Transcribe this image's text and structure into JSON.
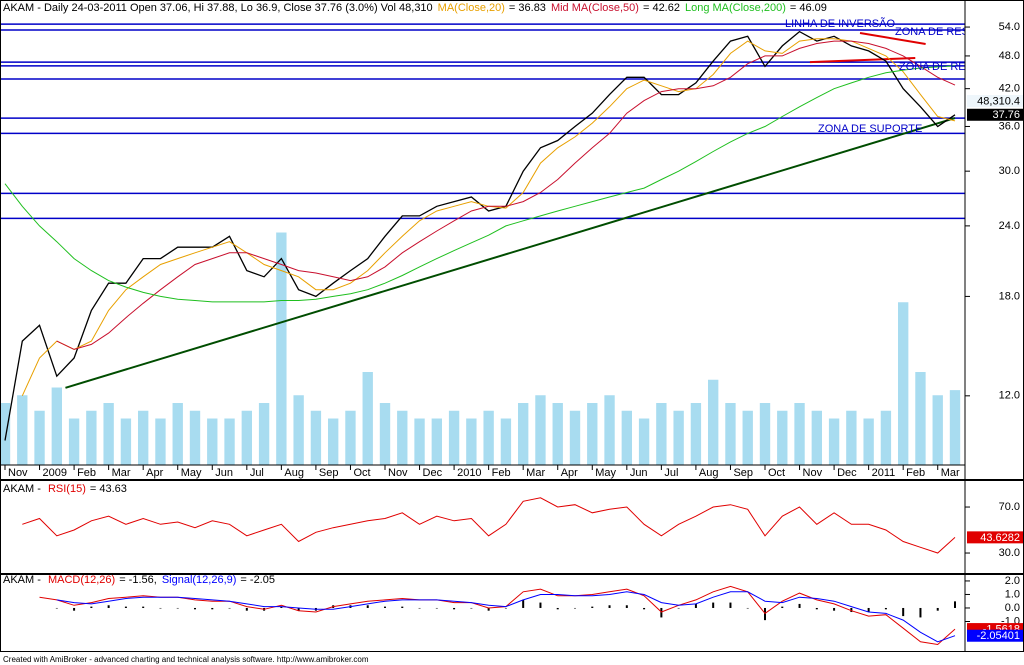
{
  "chart_data": [
    {
      "type": "line",
      "title": "AKAM - Daily 24-03-2011 Open 37.06, Hi 37.88, Lo 36.9, Close 37.76 (3.0%) Vol 48,310",
      "categories": [
        "Nov",
        null,
        "2009",
        null,
        "Feb",
        null,
        "Mar",
        null,
        "Apr",
        null,
        "May",
        null,
        "Jun",
        null,
        "Jul",
        null,
        "Aug",
        null,
        "Sep",
        null,
        "Oct",
        null,
        "Nov",
        null,
        "Dec",
        null,
        "2010",
        null,
        "Feb",
        null,
        "Mar",
        null,
        "Apr",
        null,
        "May",
        null,
        "Jun",
        null,
        "Jul",
        null,
        "Aug",
        null,
        "Sep",
        null,
        "Oct",
        null,
        "Nov",
        null,
        "Dec",
        null,
        "2011",
        null,
        "Feb",
        null,
        "Mar",
        null
      ],
      "series": [
        {
          "color": "#000000",
          "values": [
            10,
            15,
            16,
            13,
            14,
            17,
            19,
            19,
            21,
            21,
            22,
            22,
            22,
            23,
            20,
            19.5,
            21,
            18.5,
            18,
            19,
            20,
            21,
            23,
            25,
            25,
            26,
            26.5,
            27,
            25.5,
            26,
            30,
            33,
            34,
            36,
            38,
            41,
            44,
            44,
            41,
            41,
            43,
            47,
            51,
            52,
            46,
            50,
            53,
            51,
            52,
            50,
            49,
            47,
            42,
            39,
            36,
            37.76
          ]
        },
        {
          "name": "MA(Close,20)",
          "legend_value": "= 36.83",
          "color": "#e8a000",
          "values": [
            null,
            12,
            14,
            15,
            14.5,
            15,
            17,
            18.5,
            19.5,
            20.5,
            21,
            21.5,
            22,
            22.5,
            21.5,
            20.5,
            20,
            19.5,
            18.5,
            18.5,
            19,
            20,
            21.5,
            23,
            24.5,
            25.5,
            26,
            26.5,
            26,
            25.8,
            27.5,
            31,
            33,
            34.5,
            36.5,
            39,
            42,
            43.5,
            42.5,
            41.5,
            42,
            44.5,
            48.5,
            51,
            49,
            48.5,
            51,
            51.5,
            51.5,
            51,
            49.5,
            48,
            45,
            41,
            37.5,
            36.83
          ]
        },
        {
          "name": "Mid MA(Close,50)",
          "legend_value": "= 42.62",
          "color": "#c8102e",
          "values": [
            null,
            null,
            null,
            15,
            14.5,
            14.8,
            15.5,
            16.5,
            17.5,
            18.5,
            19.5,
            20.5,
            21,
            21.5,
            21.5,
            21,
            20.5,
            20,
            19.8,
            19.5,
            19.2,
            19.5,
            20.3,
            21.5,
            22.5,
            23.5,
            24.5,
            25.5,
            26,
            26,
            26.5,
            27.5,
            29,
            31,
            33,
            35,
            38,
            40,
            41.5,
            42,
            42,
            42.5,
            44,
            46.5,
            48,
            48,
            49.5,
            50.5,
            51,
            51,
            50.5,
            49.5,
            48,
            46,
            44,
            42.62
          ]
        },
        {
          "name": "Long MA(Close,200)",
          "legend_value": "= 46.09",
          "color": "#1fbf1f",
          "values": [
            28.5,
            26,
            24,
            22.5,
            21,
            20,
            19.2,
            18.7,
            18.3,
            18,
            17.8,
            17.7,
            17.6,
            17.6,
            17.6,
            17.6,
            17.7,
            17.7,
            17.8,
            18,
            18.2,
            18.5,
            19,
            19.6,
            20.3,
            21,
            21.7,
            22.4,
            23.1,
            24,
            24.5,
            25,
            25.5,
            26,
            26.5,
            27,
            27.5,
            28,
            29,
            30,
            31.2,
            32.5,
            33.8,
            35,
            36,
            37.5,
            39,
            40.5,
            42,
            43,
            44,
            44.8,
            45.3,
            45.7,
            45.9,
            46.09
          ]
        }
      ],
      "volume": {
        "color": "#a8dcf0",
        "vlim": [
          0,
          300000
        ],
        "last_label": "48,310.4",
        "values": [
          40000,
          45000,
          35000,
          50000,
          30000,
          35000,
          40000,
          30000,
          35000,
          30000,
          40000,
          35000,
          30000,
          30000,
          35000,
          40000,
          150000,
          45000,
          35000,
          30000,
          35000,
          60000,
          40000,
          35000,
          30000,
          30000,
          35000,
          30000,
          35000,
          30000,
          40000,
          45000,
          40000,
          35000,
          40000,
          45000,
          35000,
          30000,
          40000,
          35000,
          40000,
          55000,
          40000,
          35000,
          40000,
          35000,
          40000,
          35000,
          30000,
          35000,
          30000,
          35000,
          105000,
          60000,
          45000,
          48310.4
        ]
      },
      "yscale": "log",
      "ylim": [
        9.05,
        60.3
      ],
      "yticks": [
        {
          "value": 12,
          "label": "12.0"
        },
        {
          "value": 18,
          "label": "18.0"
        },
        {
          "value": 24,
          "label": "24.0"
        },
        {
          "value": 30,
          "label": "30.0"
        },
        {
          "value": 36,
          "label": "36.0"
        },
        {
          "value": 42,
          "label": "42.0"
        },
        {
          "value": 48,
          "label": "48.0"
        },
        {
          "value": 54,
          "label": "54.0"
        }
      ],
      "levels": {
        "color": "#0000c8",
        "values": [
          54.65,
          53.35,
          46.8,
          46.1,
          43.7,
          37.25,
          35.0,
          27.4,
          24.75
        ]
      },
      "trendlines": [
        {
          "color": "#004d00",
          "x": [
            3.5,
            55
          ],
          "y": [
            12.4,
            37.25
          ]
        },
        {
          "color": "#e00000",
          "x": [
            49.5,
            53.3
          ],
          "y": [
            52.7,
            50.4
          ]
        },
        {
          "color": "#e00000",
          "x": [
            46.6,
            52.7
          ],
          "y": [
            46.8,
            47.6
          ]
        }
      ],
      "annotations": [
        "LINHA DE INVERSÃO",
        "ZONA DE RESIS",
        "ZONA DE RESI",
        "ZONA DE SUPORTE"
      ]
    },
    {
      "type": "line",
      "title": "AKAM - ",
      "series": [
        {
          "name": "RSI(15)",
          "legend_value": "= 43.63",
          "color": "#e00000",
          "values": [
            null,
            55,
            60,
            45,
            50,
            58,
            62,
            55,
            60,
            55,
            57,
            52,
            58,
            55,
            45,
            50,
            55,
            40,
            48,
            52,
            55,
            58,
            60,
            65,
            55,
            62,
            58,
            60,
            45,
            55,
            75,
            78,
            70,
            72,
            65,
            68,
            70,
            55,
            45,
            55,
            62,
            70,
            72,
            68,
            45,
            62,
            70,
            55,
            65,
            55,
            55,
            50,
            40,
            35,
            30,
            43.6282
          ]
        }
      ],
      "ylim": [
        13.5,
        90.9
      ],
      "yticks": [
        {
          "value": 30,
          "label": "30.0"
        },
        {
          "value": 70,
          "label": "70.0"
        }
      ]
    },
    {
      "type": "line",
      "title": "AKAM - ",
      "series": [
        {
          "name": "MACD(12,26)",
          "legend_value": "= -1.56,",
          "color": "#e00000",
          "values": [
            null,
            null,
            0.8,
            0.6,
            0.2,
            0.4,
            0.7,
            0.8,
            0.9,
            0.8,
            0.8,
            0.6,
            0.5,
            0.5,
            0.1,
            -0.1,
            0.2,
            -0.2,
            -0.3,
            0.1,
            0.3,
            0.5,
            0.6,
            0.7,
            0.6,
            0.6,
            0.4,
            0.4,
            0,
            0.1,
            1.2,
            1.4,
            0.9,
            0.9,
            1,
            1.2,
            1.4,
            0.9,
            -0.3,
            0.2,
            0.6,
            1.2,
            1.6,
            1.2,
            -0.4,
            0.5,
            1.1,
            0.6,
            0.3,
            -0.2,
            -0.6,
            -0.5,
            -1.5,
            -2.5,
            -2.7,
            -1.5618
          ]
        },
        {
          "name": "Signal(12,26,9)",
          "legend_value": "= -2.05",
          "color": "#0000ff",
          "values": [
            null,
            null,
            null,
            0.6,
            0.4,
            0.3,
            0.5,
            0.7,
            0.8,
            0.8,
            0.8,
            0.7,
            0.6,
            0.5,
            0.3,
            0.1,
            0.1,
            0,
            -0.1,
            -0.1,
            0.1,
            0.3,
            0.5,
            0.6,
            0.6,
            0.6,
            0.5,
            0.4,
            0.2,
            0.1,
            0.6,
            1,
            1,
            0.9,
            0.9,
            1,
            1.2,
            1,
            0.4,
            0.2,
            0.3,
            0.8,
            1.2,
            1.2,
            0.5,
            0.4,
            0.8,
            0.7,
            0.5,
            0.1,
            -0.3,
            -0.4,
            -0.9,
            -1.8,
            -2.5,
            -2.05401
          ]
        }
      ],
      "histogram": {
        "color": "#000000",
        "values": [
          null,
          null,
          null,
          0,
          -0.2,
          0.1,
          0.2,
          0.1,
          0.1,
          0,
          0,
          -0.1,
          -0.1,
          0,
          -0.2,
          -0.2,
          0.1,
          -0.2,
          -0.2,
          0.2,
          0.2,
          0.2,
          0.1,
          0.1,
          0,
          0,
          -0.1,
          0,
          -0.2,
          0,
          0.6,
          0.4,
          -0.1,
          0,
          0.1,
          0.2,
          0.2,
          -0.1,
          -0.7,
          0,
          0.3,
          0.4,
          0.4,
          0,
          -0.9,
          0.1,
          0.3,
          -0.1,
          -0.2,
          -0.3,
          -0.3,
          -0.1,
          -0.6,
          -0.7,
          -0.2,
          0.49
        ]
      },
      "ylim": [
        -3.11,
        2.44
      ],
      "yticks": [
        {
          "value": 2,
          "label": "2.0"
        },
        {
          "value": 1,
          "label": "1.0"
        },
        {
          "value": 0,
          "label": "0.0"
        },
        {
          "value": -1,
          "label": "-1.0"
        }
      ]
    }
  ],
  "footer": "Created with AmiBroker - advanced charting and technical analysis software. http://www.amibroker.com"
}
